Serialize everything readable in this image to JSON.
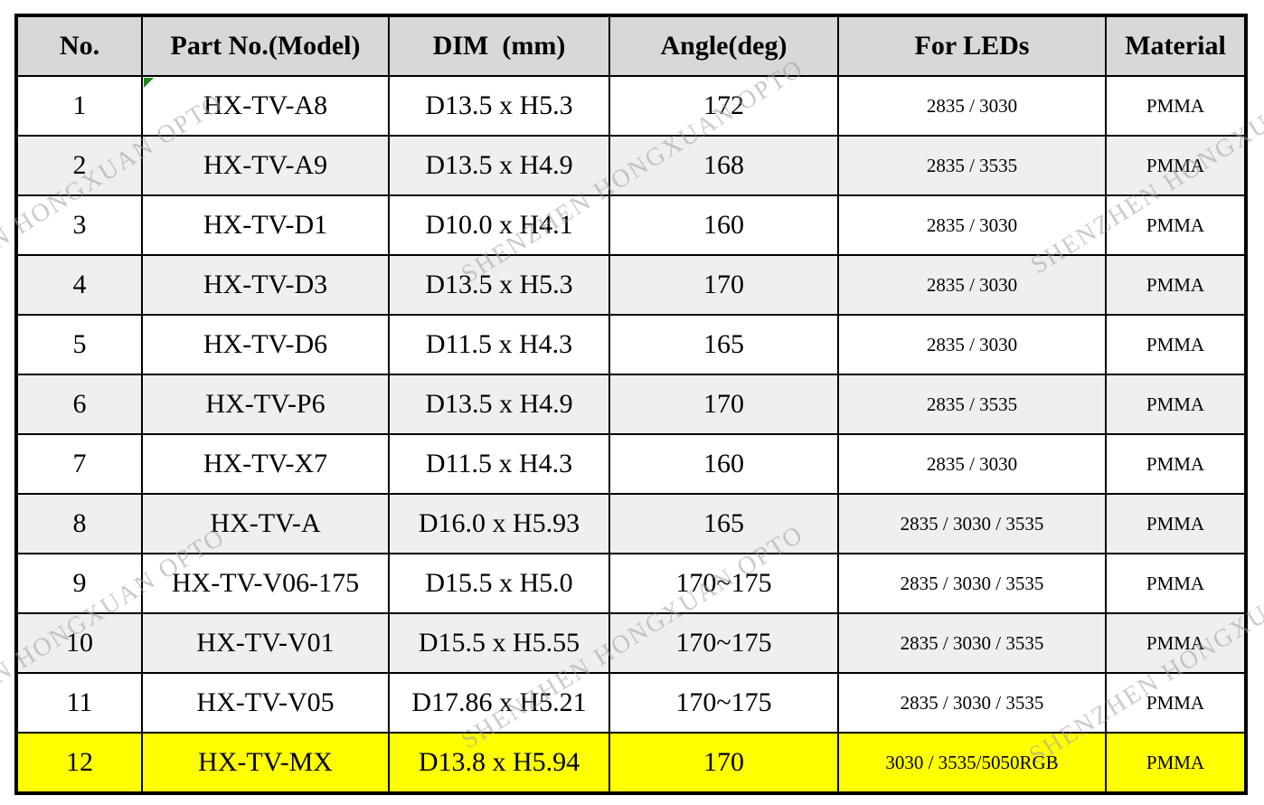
{
  "watermark": {
    "text": "SHENZHEN HONGXUAN OPTO"
  },
  "colors": {
    "header_bg": "#d8d8d8",
    "alt_row_bg": "#efefef",
    "highlight_bg": "#ffff00",
    "border": "#000000",
    "watermark_gray": "#9e9ea5",
    "comment_flag_green": "#1e8a1e"
  },
  "table": {
    "headers": [
      "No.",
      "Part No.(Model)",
      "DIM  (mm)",
      "Angle(deg)",
      "For LEDs",
      "Material"
    ],
    "rows": [
      {
        "no": "1",
        "model": "HX-TV-A8",
        "dim": "D13.5 x H5.3",
        "angle": "172",
        "leds": "2835 / 3030",
        "material": "PMMA",
        "highlighted": false
      },
      {
        "no": "2",
        "model": "HX-TV-A9",
        "dim": "D13.5 x H4.9",
        "angle": "168",
        "leds": "2835 / 3535",
        "material": "PMMA",
        "highlighted": false
      },
      {
        "no": "3",
        "model": "HX-TV-D1",
        "dim": "D10.0 x H4.1",
        "angle": "160",
        "leds": "2835 / 3030",
        "material": "PMMA",
        "highlighted": false
      },
      {
        "no": "4",
        "model": "HX-TV-D3",
        "dim": "D13.5 x H5.3",
        "angle": "170",
        "leds": "2835 / 3030",
        "material": "PMMA",
        "highlighted": false
      },
      {
        "no": "5",
        "model": "HX-TV-D6",
        "dim": "D11.5 x H4.3",
        "angle": "165",
        "leds": "2835 / 3030",
        "material": "PMMA",
        "highlighted": false
      },
      {
        "no": "6",
        "model": "HX-TV-P6",
        "dim": "D13.5 x H4.9",
        "angle": "170",
        "leds": "2835 / 3535",
        "material": "PMMA",
        "highlighted": false
      },
      {
        "no": "7",
        "model": "HX-TV-X7",
        "dim": "D11.5 x H4.3",
        "angle": "160",
        "leds": "2835 / 3030",
        "material": "PMMA",
        "highlighted": false
      },
      {
        "no": "8",
        "model": "HX-TV-A",
        "dim": "D16.0 x H5.93",
        "angle": "165",
        "leds": "2835 / 3030 / 3535",
        "material": "PMMA",
        "highlighted": false
      },
      {
        "no": "9",
        "model": "HX-TV-V06-175",
        "dim": "D15.5 x H5.0",
        "angle": "170~175",
        "leds": "2835 / 3030 / 3535",
        "material": "PMMA",
        "highlighted": false
      },
      {
        "no": "10",
        "model": "HX-TV-V01",
        "dim": "D15.5 x H5.55",
        "angle": "170~175",
        "leds": "2835 / 3030 / 3535",
        "material": "PMMA",
        "highlighted": false
      },
      {
        "no": "11",
        "model": "HX-TV-V05",
        "dim": "D17.86 x H5.21",
        "angle": "170~175",
        "leds": "2835 / 3030 / 3535",
        "material": "PMMA",
        "highlighted": false
      },
      {
        "no": "12",
        "model": "HX-TV-MX",
        "dim": "D13.8 x H5.94",
        "angle": "170",
        "leds": "3030 / 3535/5050RGB",
        "material": "PMMA",
        "highlighted": true
      }
    ]
  }
}
